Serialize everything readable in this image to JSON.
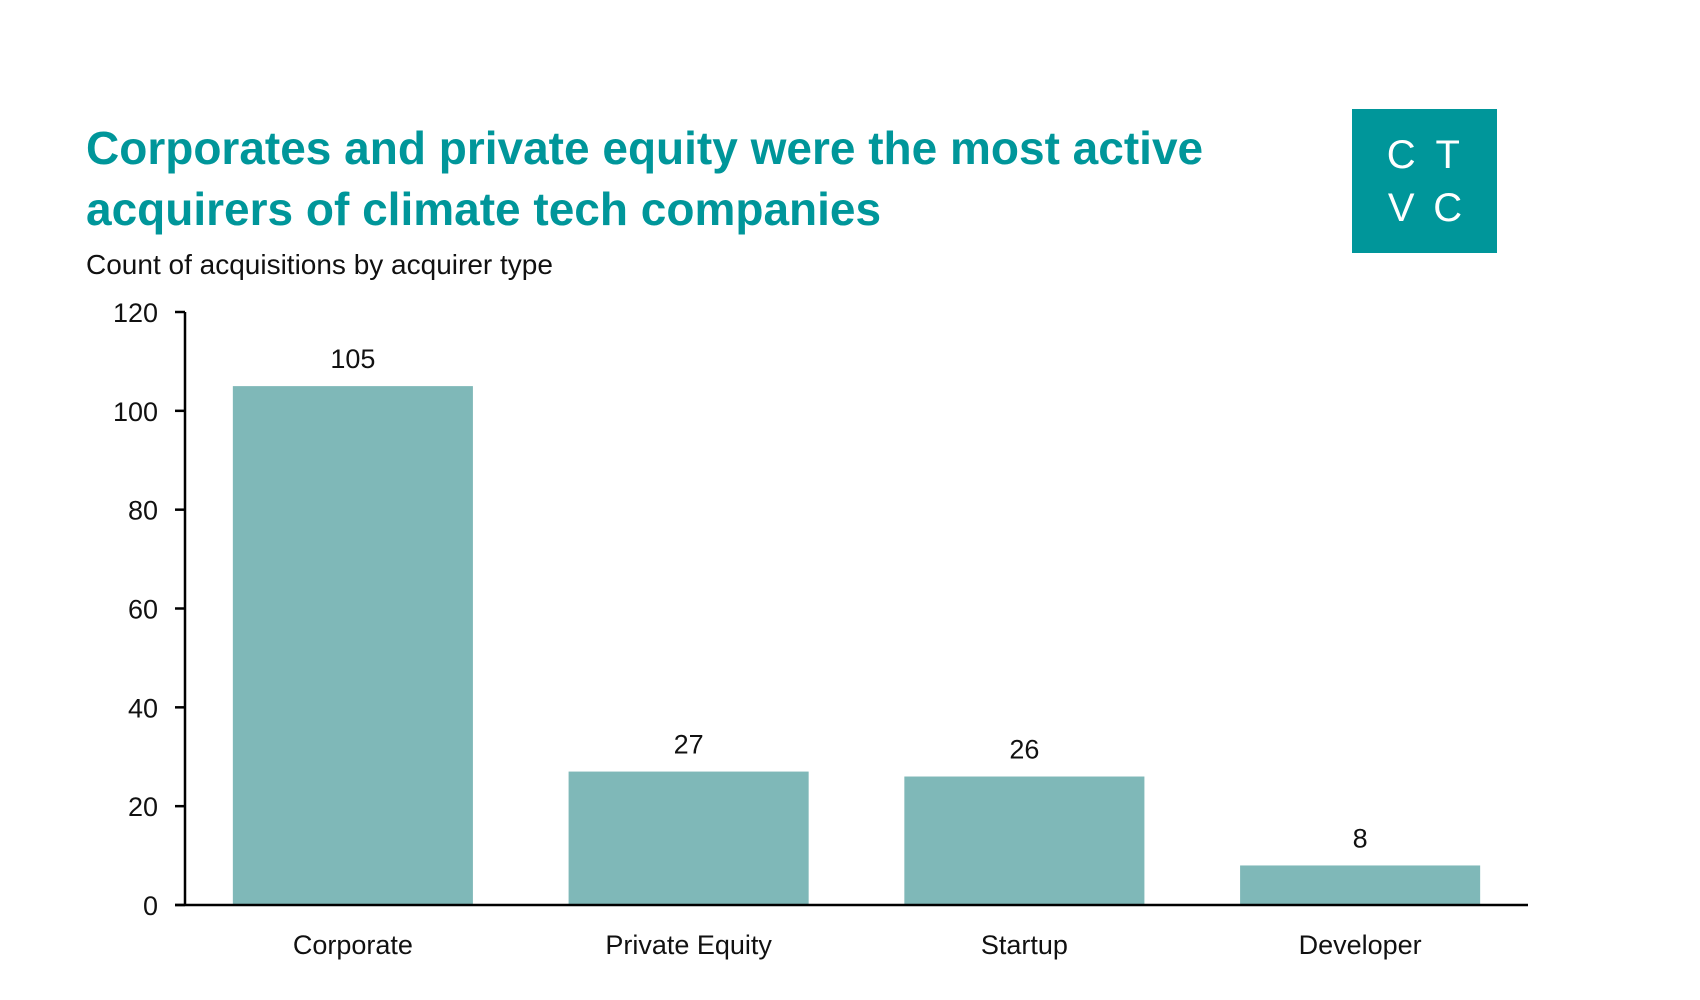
{
  "title": "Corporates and private equity were the most active acquirers of climate tech companies",
  "subtitle": "Count of acquisitions by acquirer type",
  "logo": {
    "letters": [
      "C",
      "T",
      "V",
      "C"
    ],
    "background": "#00969a"
  },
  "colors": {
    "title": "#00969a",
    "bar": "#7fb8b8",
    "axis": "#000000"
  },
  "chart_data": {
    "type": "bar",
    "categories": [
      "Corporate",
      "Private Equity",
      "Startup",
      "Developer"
    ],
    "values": [
      105,
      27,
      26,
      8
    ],
    "data_labels": [
      "105",
      "27",
      "26",
      "8"
    ],
    "ylim": [
      0,
      120
    ],
    "yticks": [
      0,
      20,
      40,
      60,
      80,
      100,
      120
    ],
    "xlabel": "",
    "ylabel": "",
    "grid": false,
    "legend": "none"
  }
}
